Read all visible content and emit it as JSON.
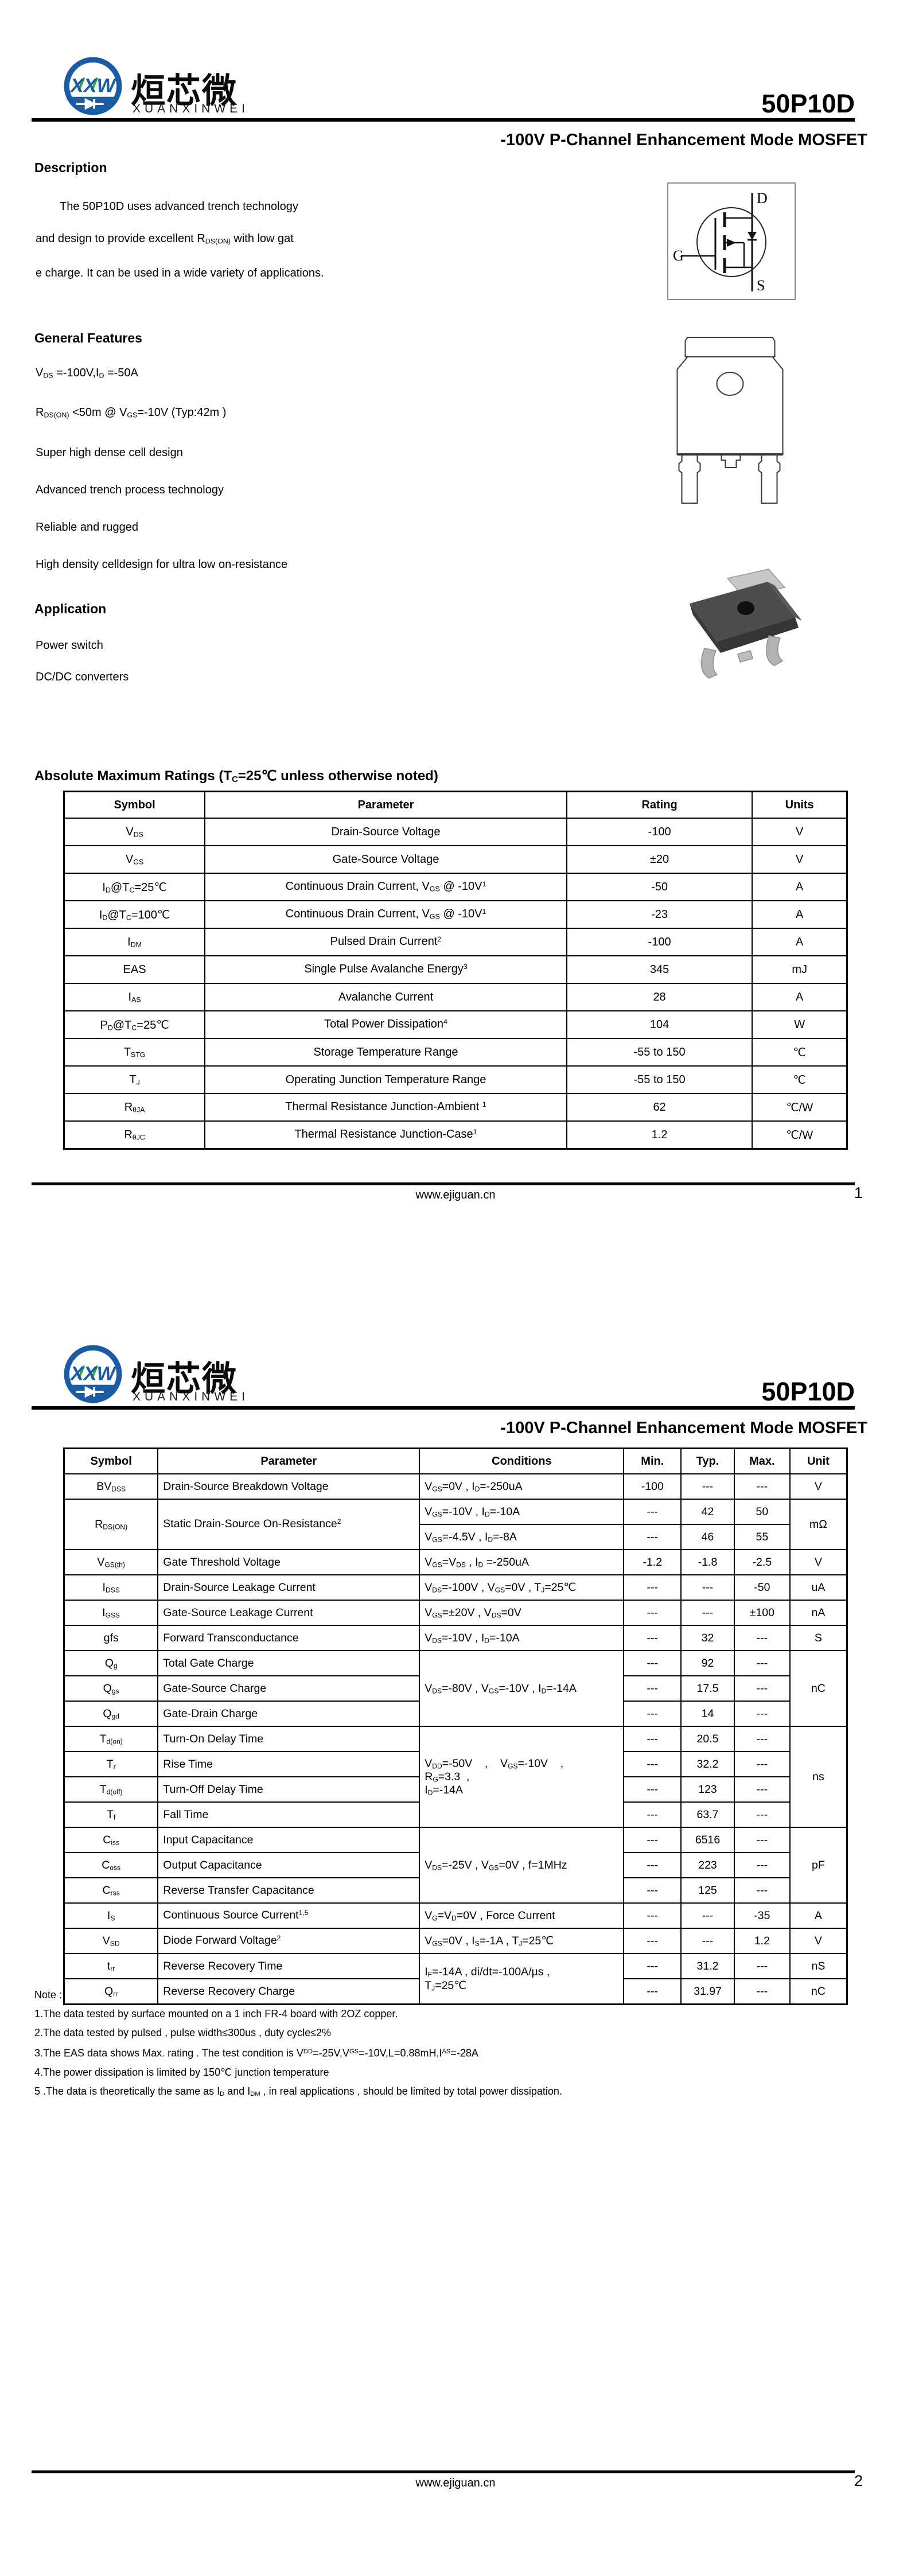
{
  "brand": {
    "logo_text": "XXW",
    "cn": "烜芯微",
    "en": "XUANXINWEI"
  },
  "part_number": "50P10D",
  "subtitle": "-100V P-Channel Enhancement Mode MOSFET",
  "description": {
    "heading": "Description",
    "lines": [
      "The 50P10D uses advanced trench technology",
      "and design to provide excellent R_{DS(ON)} with low gat",
      "e charge. It can be used in a wide variety of applications."
    ]
  },
  "general_features": {
    "heading": "General Features",
    "items": [
      "V_{DS} =-100V,I_{D} =-50A",
      "R_{DS(ON)} <50m @ V_{GS}=-10V  (Typ:42m )",
      "Super high dense cell design",
      "Advanced trench process technology",
      "Reliable and rugged",
      "High density celldesign for ultra low on-resistance"
    ]
  },
  "application": {
    "heading": "Application",
    "items": [
      "Power switch",
      "DC/DC converters"
    ]
  },
  "mosfet_symbol": {
    "drain": "D",
    "gate": "G",
    "source": "S"
  },
  "amr_table": {
    "title": "Absolute Maximum Ratings (T_{C}=25℃ unless otherwise noted)",
    "columns": [
      "Symbol",
      "Parameter",
      "Rating",
      "Units"
    ],
    "col_widths": [
      "18%",
      "46.2%",
      "23.7%",
      "12.1%"
    ],
    "col_align": [
      "center",
      "center",
      "center",
      "center"
    ],
    "rows": [
      [
        {
          "t": "V_{DS}"
        },
        {
          "t": "Drain-Source Voltage"
        },
        {
          "t": "-100"
        },
        {
          "t": "V"
        }
      ],
      [
        {
          "t": "V_{GS}"
        },
        {
          "t": "Gate-Source Voltage"
        },
        {
          "t": "±20"
        },
        {
          "t": "V"
        }
      ],
      [
        {
          "t": "I_{D}@T_{C}=25℃"
        },
        {
          "t": "Continuous Drain Current, V_{GS} @ -10V^{1}"
        },
        {
          "t": "-50"
        },
        {
          "t": "A"
        }
      ],
      [
        {
          "t": "I_{D}@T_{C}=100℃"
        },
        {
          "t": "Continuous Drain Current, V_{GS} @ -10V^{1}"
        },
        {
          "t": "-23"
        },
        {
          "t": "A"
        }
      ],
      [
        {
          "t": "I_{DM}"
        },
        {
          "t": "Pulsed Drain Current^{2}"
        },
        {
          "t": "-100"
        },
        {
          "t": "A"
        }
      ],
      [
        {
          "t": "EAS"
        },
        {
          "t": "Single Pulse Avalanche Energy^{3}"
        },
        {
          "t": "345"
        },
        {
          "t": "mJ"
        }
      ],
      [
        {
          "t": "I_{AS}"
        },
        {
          "t": "Avalanche Current"
        },
        {
          "t": "28"
        },
        {
          "t": "A"
        }
      ],
      [
        {
          "t": "P_{D}@T_{C}=25℃"
        },
        {
          "t": "Total Power Dissipation^{4}"
        },
        {
          "t": "104"
        },
        {
          "t": "W"
        }
      ],
      [
        {
          "t": "T_{STG}"
        },
        {
          "t": "Storage Temperature Range"
        },
        {
          "t": "-55 to 150"
        },
        {
          "t": "℃"
        }
      ],
      [
        {
          "t": "T_{J}"
        },
        {
          "t": "Operating Junction Temperature Range"
        },
        {
          "t": "-55 to 150"
        },
        {
          "t": "℃"
        }
      ],
      [
        {
          "t": "R_{θJA}"
        },
        {
          "t": "Thermal Resistance Junction-Ambient ^{1}"
        },
        {
          "t": "62"
        },
        {
          "t": "℃/W"
        }
      ],
      [
        {
          "t": "R_{θJC}"
        },
        {
          "t": "Thermal Resistance Junction-Case^{1}"
        },
        {
          "t": "1.2"
        },
        {
          "t": "℃/W"
        }
      ]
    ]
  },
  "ec_table": {
    "columns": [
      "Symbol",
      "Parameter",
      "Conditions",
      "Min.",
      "Typ.",
      "Max.",
      "Unit"
    ],
    "col_widths": [
      "12%",
      "33.4%",
      "26.1%",
      "7.3%",
      "6.8%",
      "7.1%",
      "7.3%"
    ],
    "col_align": [
      "center",
      "left",
      "left",
      "center",
      "center",
      "center",
      "center"
    ],
    "rows": [
      [
        {
          "t": "BV_{DSS}"
        },
        {
          "t": "Drain-Source Breakdown Voltage"
        },
        {
          "t": "V_{GS}=0V , I_{D}=-250uA"
        },
        {
          "t": "-100"
        },
        {
          "t": "---"
        },
        {
          "t": "---"
        },
        {
          "t": "V"
        }
      ],
      [
        {
          "t": "R_{DS(ON)}",
          "rs": 2
        },
        {
          "t": "Static Drain-Source On-Resistance^{2}",
          "rs": 2
        },
        {
          "t": "V_{GS}=-10V , I_{D}=-10A"
        },
        {
          "t": "---"
        },
        {
          "t": "42"
        },
        {
          "t": "50"
        },
        {
          "t": "mΩ",
          "rs": 2
        }
      ],
      [
        {
          "t": "V_{GS}=-4.5V , I_{D}=-8A"
        },
        {
          "t": "---"
        },
        {
          "t": "46"
        },
        {
          "t": "55"
        }
      ],
      [
        {
          "t": "V_{GS(th)}"
        },
        {
          "t": "Gate Threshold Voltage"
        },
        {
          "t": "V_{GS}=V_{DS} , I_{D} =-250uA"
        },
        {
          "t": "-1.2"
        },
        {
          "t": "-1.8"
        },
        {
          "t": "-2.5"
        },
        {
          "t": "V"
        }
      ],
      [
        {
          "t": "I_{DSS}"
        },
        {
          "t": "Drain-Source Leakage Current"
        },
        {
          "t": "V_{DS}=-100V , V_{GS}=0V , T_{J}=25℃"
        },
        {
          "t": "---"
        },
        {
          "t": "---"
        },
        {
          "t": "-50"
        },
        {
          "t": "uA"
        }
      ],
      [
        {
          "t": "I_{GSS}"
        },
        {
          "t": "Gate-Source Leakage Current"
        },
        {
          "t": "V_{GS}=±20V , V_{DS}=0V"
        },
        {
          "t": "---"
        },
        {
          "t": "---"
        },
        {
          "t": "±100"
        },
        {
          "t": "nA"
        }
      ],
      [
        {
          "t": "gfs"
        },
        {
          "t": "Forward Transconductance"
        },
        {
          "t": "V_{DS}=-10V , I_{D}=-10A"
        },
        {
          "t": "---"
        },
        {
          "t": "32"
        },
        {
          "t": "---"
        },
        {
          "t": "S"
        }
      ],
      [
        {
          "t": "Q_{g}"
        },
        {
          "t": "Total Gate Charge"
        },
        {
          "t": "V_{DS}=-80V , V_{GS}=-10V , I_{D}=-14A",
          "rs": 3
        },
        {
          "t": "---"
        },
        {
          "t": "92"
        },
        {
          "t": "---"
        },
        {
          "t": "nC",
          "rs": 3
        }
      ],
      [
        {
          "t": "Q_{gs}"
        },
        {
          "t": "Gate-Source Charge"
        },
        {
          "t": "---"
        },
        {
          "t": "17.5"
        },
        {
          "t": "---"
        }
      ],
      [
        {
          "t": "Q_{gd}"
        },
        {
          "t": "Gate-Drain Charge"
        },
        {
          "t": "---"
        },
        {
          "t": "14"
        },
        {
          "t": "---"
        }
      ],
      [
        {
          "t": "T_{d(on)}"
        },
        {
          "t": "Turn-On Delay Time"
        },
        {
          "t": "V_{DD}=-50V    ,    V_{GS}=-10V    ,\nR_{G}=3.3  ,\nI_{D}=-14A",
          "rs": 4
        },
        {
          "t": "---"
        },
        {
          "t": "20.5"
        },
        {
          "t": "---"
        },
        {
          "t": "ns",
          "rs": 4
        }
      ],
      [
        {
          "t": "T_{r}"
        },
        {
          "t": "Rise Time"
        },
        {
          "t": "---"
        },
        {
          "t": "32.2"
        },
        {
          "t": "---"
        }
      ],
      [
        {
          "t": "T_{d(off)}"
        },
        {
          "t": "Turn-Off Delay Time"
        },
        {
          "t": "---"
        },
        {
          "t": "123"
        },
        {
          "t": "---"
        }
      ],
      [
        {
          "t": "T_{f}"
        },
        {
          "t": "Fall Time"
        },
        {
          "t": "---"
        },
        {
          "t": "63.7"
        },
        {
          "t": "---"
        }
      ],
      [
        {
          "t": "C_{iss}"
        },
        {
          "t": "Input Capacitance"
        },
        {
          "t": "V_{DS}=-25V , V_{GS}=0V , f=1MHz",
          "rs": 3
        },
        {
          "t": "---"
        },
        {
          "t": "6516"
        },
        {
          "t": "---"
        },
        {
          "t": "pF",
          "rs": 3
        }
      ],
      [
        {
          "t": "C_{oss}"
        },
        {
          "t": "Output Capacitance"
        },
        {
          "t": "---"
        },
        {
          "t": "223"
        },
        {
          "t": "---"
        }
      ],
      [
        {
          "t": "C_{rss}"
        },
        {
          "t": "Reverse Transfer Capacitance"
        },
        {
          "t": "---"
        },
        {
          "t": "125"
        },
        {
          "t": "---"
        }
      ],
      [
        {
          "t": "I_{S}"
        },
        {
          "t": "Continuous Source Current^{1,5}"
        },
        {
          "t": "V_{G}=V_{D}=0V , Force Current"
        },
        {
          "t": "---"
        },
        {
          "t": "---"
        },
        {
          "t": "-35"
        },
        {
          "t": "A"
        }
      ],
      [
        {
          "t": "V_{SD}"
        },
        {
          "t": "Diode Forward Voltage^{2}"
        },
        {
          "t": "V_{GS}=0V , I_{S}=-1A , T_{J}=25℃"
        },
        {
          "t": "---"
        },
        {
          "t": "---"
        },
        {
          "t": "1.2"
        },
        {
          "t": "V"
        }
      ],
      [
        {
          "t": "t_{rr}"
        },
        {
          "t": "Reverse Recovery Time"
        },
        {
          "t": "I_{F}=-14A , di/dt=-100A/µs ,\nT_{J}=25℃",
          "rs": 2
        },
        {
          "t": "---"
        },
        {
          "t": "31.2"
        },
        {
          "t": "---"
        },
        {
          "t": "nS"
        }
      ],
      [
        {
          "t": "Q_{rr}"
        },
        {
          "t": "Reverse Recovery Charge"
        },
        {
          "t": "---"
        },
        {
          "t": "31.97"
        },
        {
          "t": "---"
        },
        {
          "t": "nC"
        }
      ]
    ]
  },
  "notes": {
    "heading": "Note :",
    "items": [
      "1.The data tested by surface mounted on a 1 inch FR-4 board with 2OZ copper.",
      "2.The data tested by pulsed , pulse width≤300us , duty cycle≤2%",
      "3.The EAS data shows Max. rating . The test condition is V^{DD}=-25V,V^{GS}=-10V,L=0.88mH,I^{AS}=-28A",
      "4.The power dissipation is limited by 150℃ junction temperature",
      "5 .The data is theoretically the same as I_{D} and I_{DM} , in real applications , should be limited by total power dissipation."
    ]
  },
  "footer": {
    "url": "www.ejiguan.cn",
    "page1": "1",
    "page2": "2"
  }
}
